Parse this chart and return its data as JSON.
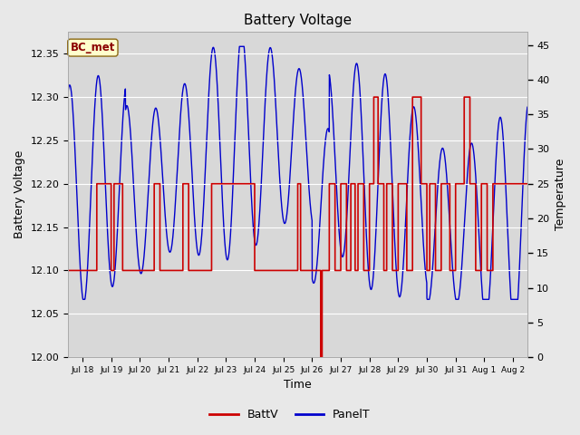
{
  "title": "Battery Voltage",
  "xlabel": "Time",
  "ylabel_left": "Battery Voltage",
  "ylabel_right": "Temperature",
  "ylim_left": [
    12.0,
    12.375
  ],
  "ylim_right": [
    0,
    46.875
  ],
  "fig_bg": "#e8e8e8",
  "plot_bg": "#d8d8d8",
  "grid_color": "#ffffff",
  "annotation_label": "BC_met",
  "annotation_color": "#8b0000",
  "annotation_bg": "#ffffcc",
  "annotation_edge": "#8b6914",
  "batt_color": "#cc0000",
  "panel_color": "#0000cc",
  "legend_items": [
    "BattV",
    "PanelT"
  ],
  "title_fontsize": 11,
  "axis_label_fontsize": 9,
  "tick_fontsize": 8,
  "right_yticks": [
    0,
    5,
    10,
    15,
    20,
    25,
    30,
    35,
    40,
    45
  ],
  "left_yticks": [
    12.0,
    12.05,
    12.1,
    12.15,
    12.2,
    12.25,
    12.3,
    12.35
  ],
  "x_ticks": [
    1,
    2,
    3,
    4,
    5,
    6,
    7,
    8,
    9,
    10,
    11,
    12,
    13,
    14,
    15,
    16
  ],
  "x_labels": [
    "Jul 18",
    "Jul 19",
    "Jul 20",
    "Jul 21",
    "Jul 22",
    "Jul 23",
    "Jul 24",
    "Jul 25",
    "Jul 26",
    "Jul 27",
    "Jul 28",
    "Jul 29",
    "Jul 30",
    "Jul 31",
    "Aug 1",
    "Aug 2"
  ]
}
